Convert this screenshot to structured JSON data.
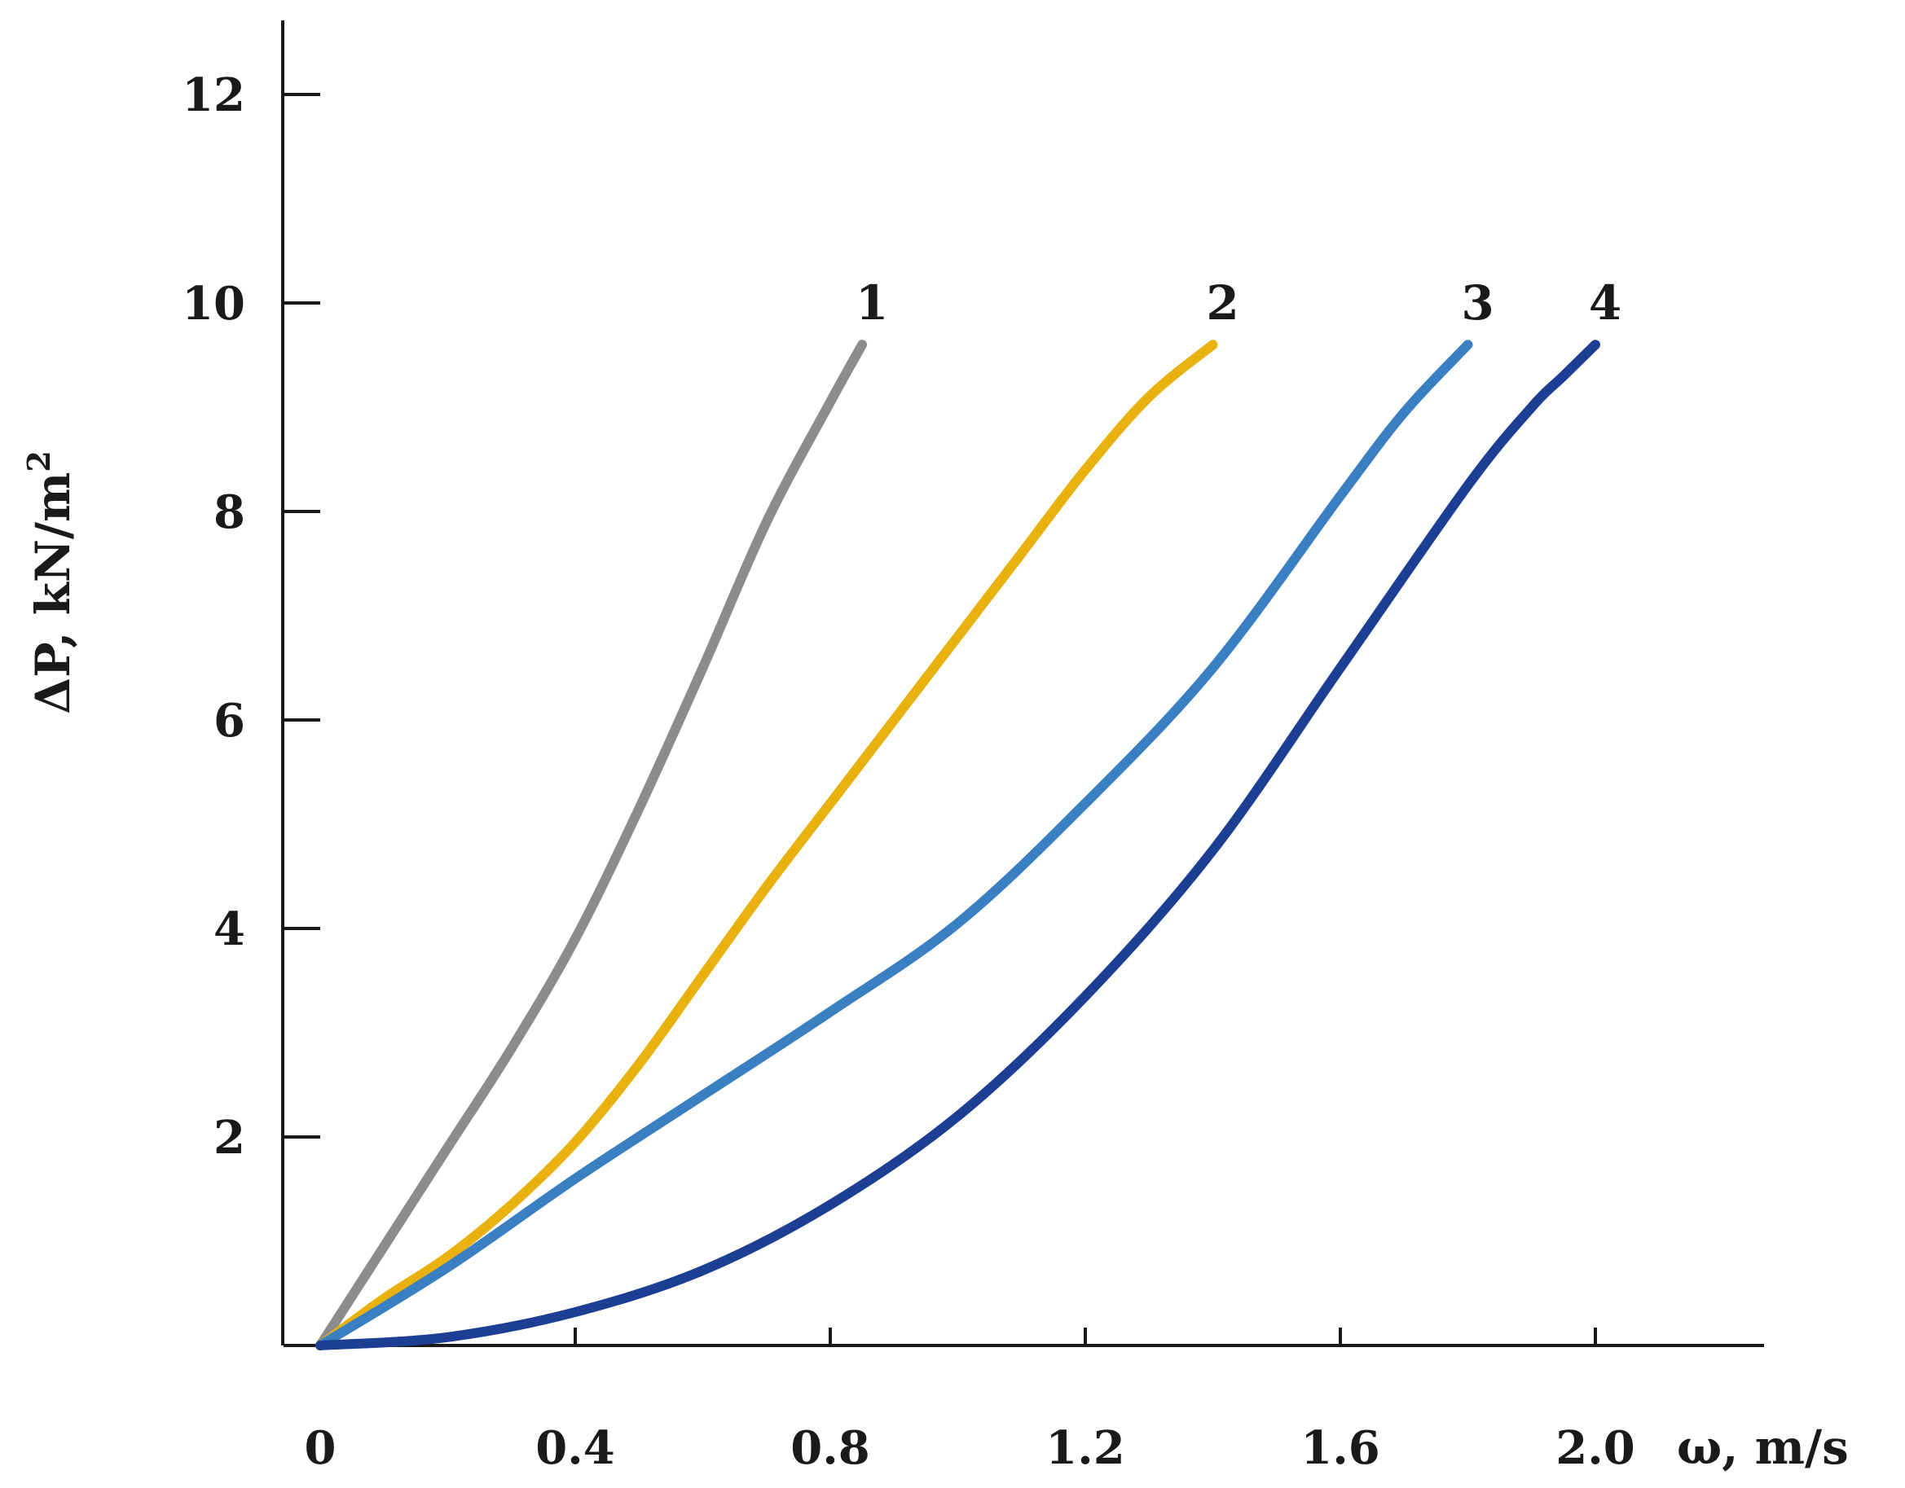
{
  "chart_data": {
    "type": "line",
    "xlabel": "ω, m/s",
    "ylabel": "ΔP, kN/m",
    "ylabel_sup": "2",
    "xlim": [
      0,
      2.2
    ],
    "ylim": [
      0,
      13
    ],
    "x_ticks": [
      0,
      0.4,
      0.8,
      1.2,
      1.6,
      2.0
    ],
    "x_tick_labels": [
      "0",
      "0.4",
      "0.8",
      "1.2",
      "1.6",
      "2.0"
    ],
    "y_ticks": [
      2,
      4,
      6,
      8,
      10,
      12
    ],
    "y_tick_labels": [
      "2",
      "4",
      "6",
      "8",
      "10",
      "12"
    ],
    "grid": false,
    "legend": "none",
    "series": [
      {
        "label": "1",
        "color": "#8c8c8c",
        "x": [
          0.0,
          0.1,
          0.2,
          0.3,
          0.4,
          0.5,
          0.6,
          0.7,
          0.8,
          0.85
        ],
        "y": [
          0.0,
          0.95,
          1.9,
          2.85,
          3.9,
          5.15,
          6.5,
          7.9,
          9.05,
          9.6
        ]
      },
      {
        "label": "2",
        "color": "#e8b10e",
        "x": [
          0.0,
          0.1,
          0.2,
          0.3,
          0.4,
          0.5,
          0.6,
          0.7,
          0.8,
          0.9,
          1.0,
          1.1,
          1.2,
          1.3,
          1.4
        ],
        "y": [
          0.0,
          0.45,
          0.85,
          1.35,
          1.95,
          2.7,
          3.55,
          4.4,
          5.2,
          6.0,
          6.8,
          7.6,
          8.4,
          9.1,
          9.6
        ]
      },
      {
        "label": "3",
        "color": "#3a7fc1",
        "x": [
          0.0,
          0.2,
          0.4,
          0.6,
          0.8,
          1.0,
          1.2,
          1.4,
          1.6,
          1.7,
          1.8
        ],
        "y": [
          0.0,
          0.75,
          1.6,
          2.4,
          3.2,
          4.05,
          5.2,
          6.5,
          8.15,
          8.95,
          9.6
        ]
      },
      {
        "label": "4",
        "color": "#1c3f94",
        "x": [
          0.0,
          0.2,
          0.4,
          0.6,
          0.8,
          1.0,
          1.2,
          1.4,
          1.6,
          1.8,
          1.9,
          1.95,
          2.0
        ],
        "y": [
          0.0,
          0.08,
          0.32,
          0.72,
          1.35,
          2.2,
          3.35,
          4.75,
          6.5,
          8.25,
          9.0,
          9.3,
          9.6
        ]
      }
    ]
  }
}
